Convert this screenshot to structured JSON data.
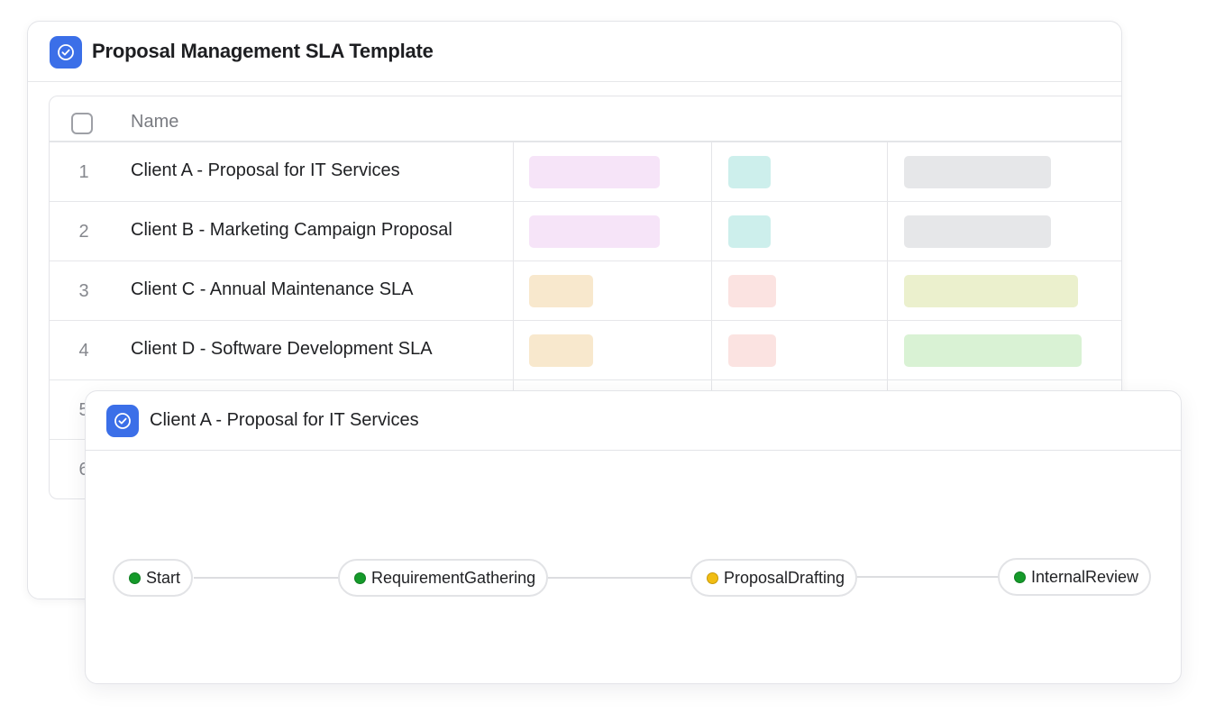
{
  "back_card": {
    "title": "Proposal Management SLA Template",
    "icon": "check-circle-icon",
    "accent_color": "#3b6fe8"
  },
  "table": {
    "header": {
      "name": "Name"
    },
    "rows": [
      {
        "num": "1",
        "name": "Client A - Proposal for IT Services",
        "tags": [
          "#f6e4f8",
          "#cdefec",
          "#e6e7e9"
        ]
      },
      {
        "num": "2",
        "name": "Client B - Marketing Campaign Proposal",
        "tags": [
          "#f6e4f8",
          "#cdefec",
          "#e6e7e9"
        ]
      },
      {
        "num": "3",
        "name": "Client C - Annual Maintenance SLA",
        "tags": [
          "#f8e8cd",
          "#fbe3e1",
          "#ebf0cd"
        ]
      },
      {
        "num": "4",
        "name": "Client D - Software Development SLA",
        "tags": [
          "#f8e8cd",
          "#fbe3e1",
          "#d9f2d4"
        ]
      },
      {
        "num": "5",
        "name": ""
      },
      {
        "num": "6",
        "name": ""
      }
    ]
  },
  "front_card": {
    "title": "Client A - Proposal for IT Services",
    "icon": "check-circle-icon",
    "workflow": [
      {
        "label": "Start",
        "status": "done",
        "color": "#159a2a"
      },
      {
        "label": "RequirementGathering",
        "status": "done",
        "color": "#159a2a"
      },
      {
        "label": "ProposalDrafting",
        "status": "in-progress",
        "color": "#f1bd13"
      },
      {
        "label": "InternalReview",
        "status": "done",
        "color": "#159a2a"
      }
    ]
  }
}
